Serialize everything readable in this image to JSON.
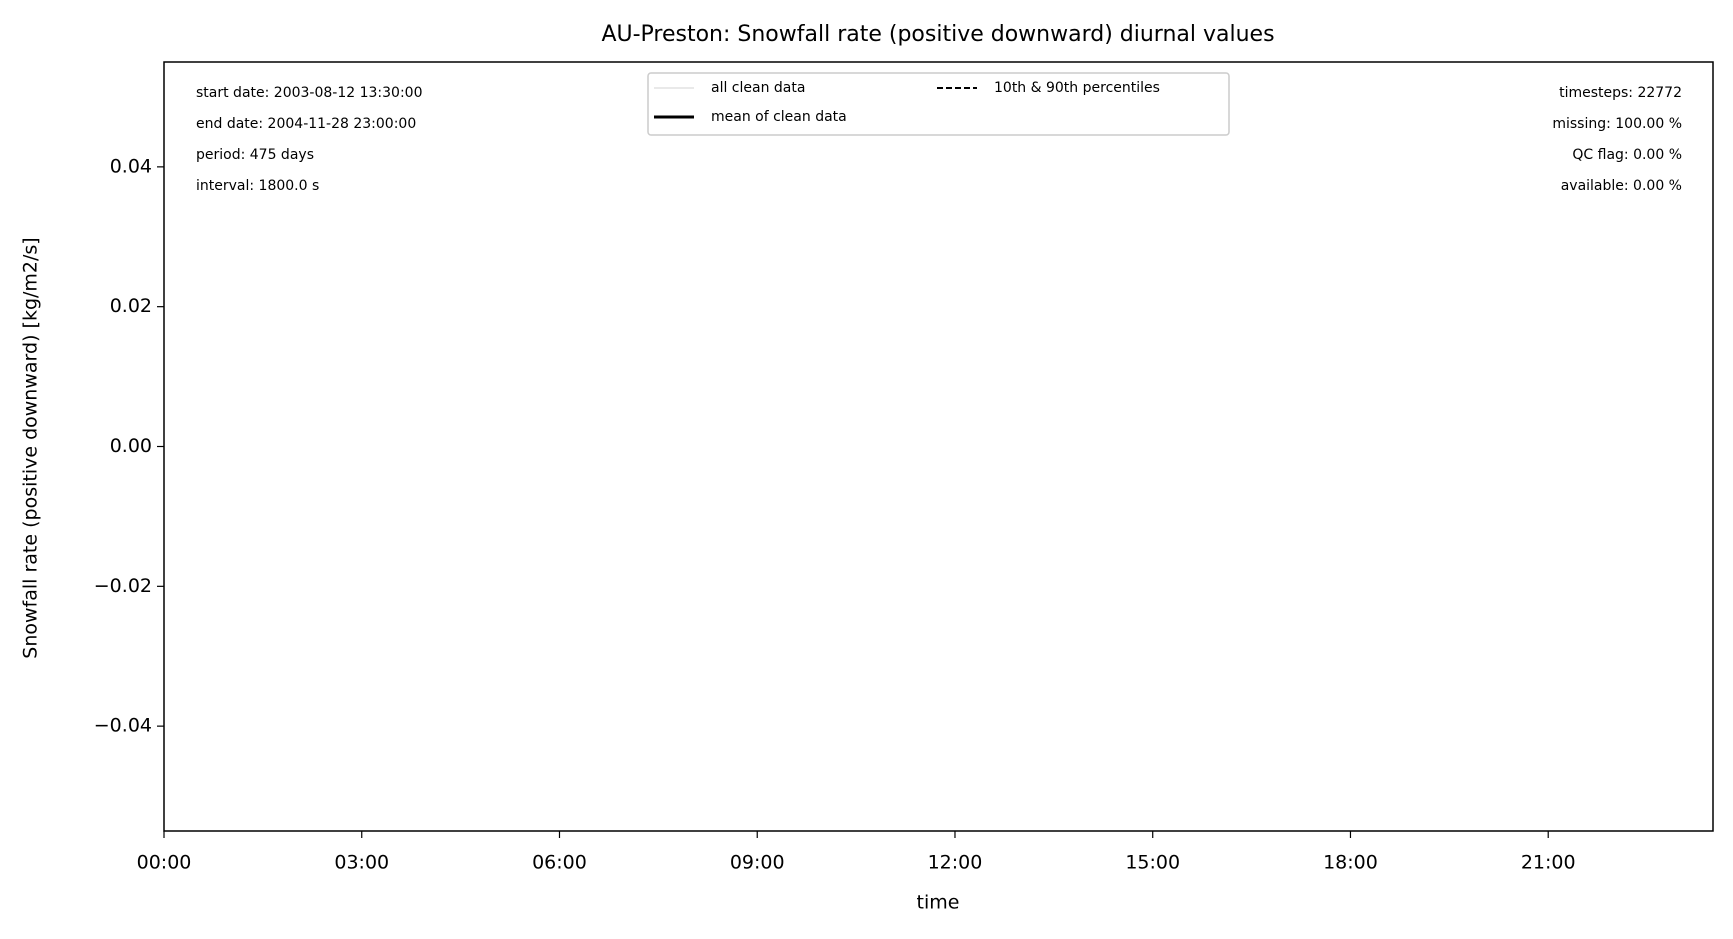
{
  "chart_data": {
    "type": "line",
    "title": "AU-Preston: Snowfall rate (positive downward) diurnal values",
    "x_label": "time",
    "y_label": "Snowfall rate (positive downward) [kg/m2/s]",
    "xlim": [
      0,
      23.5
    ],
    "xticks": [
      {
        "value": 0,
        "label": "00:00"
      },
      {
        "value": 3,
        "label": "03:00"
      },
      {
        "value": 6,
        "label": "06:00"
      },
      {
        "value": 9,
        "label": "09:00"
      },
      {
        "value": 12,
        "label": "12:00"
      },
      {
        "value": 15,
        "label": "15:00"
      },
      {
        "value": 18,
        "label": "18:00"
      },
      {
        "value": 21,
        "label": "21:00"
      }
    ],
    "ylim": [
      -0.055,
      0.055
    ],
    "yticks": [
      {
        "value": -0.04,
        "label": "−0.04"
      },
      {
        "value": -0.02,
        "label": "−0.02"
      },
      {
        "value": 0,
        "label": "0.00"
      },
      {
        "value": 0.02,
        "label": "0.02"
      },
      {
        "value": 0.04,
        "label": "0.04"
      }
    ],
    "x": [],
    "series": [
      {
        "name": "all clean data",
        "color": "#d3d3d3",
        "dash": "none",
        "width": 1,
        "values": []
      },
      {
        "name": "mean of clean data",
        "color": "#000000",
        "dash": "none",
        "width": 3,
        "values": []
      },
      {
        "name": "10th & 90th percentiles",
        "color": "#000000",
        "dash": "6,3",
        "width": 2,
        "values": []
      }
    ],
    "legend_loc": "upper center",
    "annotations": {
      "left": [
        "start date: 2003-08-12 13:30:00",
        "end date: 2004-11-28 23:00:00",
        "period: 475 days",
        "interval: 1800.0 s"
      ],
      "right": [
        "timesteps: 22772",
        "missing: 100.00 %",
        "QC flag: 0.00 %",
        "available: 0.00 %"
      ]
    }
  }
}
